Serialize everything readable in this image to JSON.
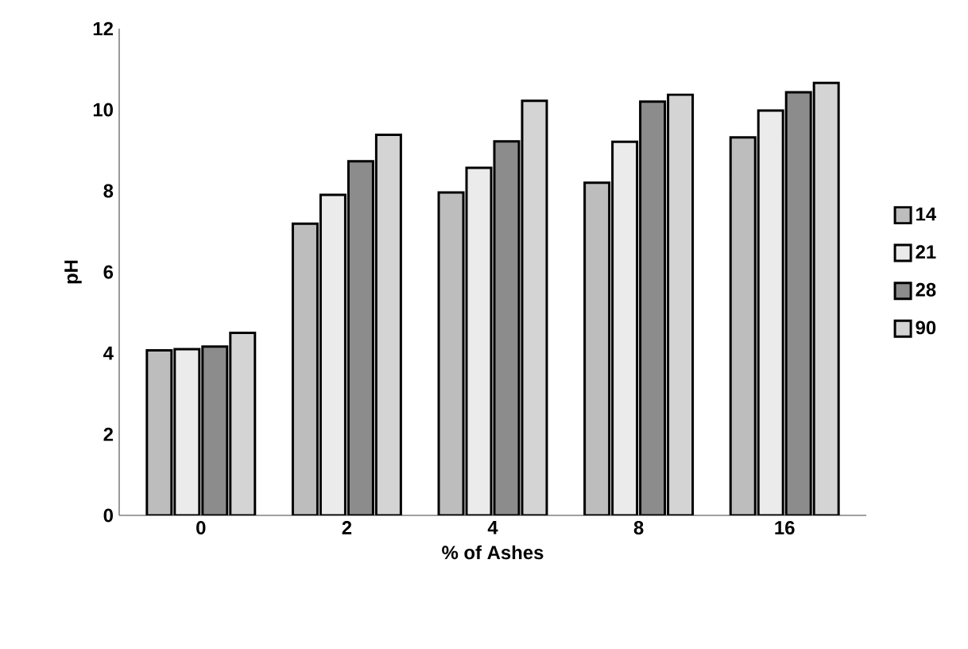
{
  "chart_data": {
    "type": "bar",
    "xlabel": "% of Ashes",
    "ylabel": "pH",
    "categories": [
      "0",
      "2",
      "4",
      "8",
      "16"
    ],
    "series": [
      {
        "name": "14",
        "color": "#bdbdbd",
        "values": [
          4.07,
          7.19,
          7.96,
          8.2,
          9.32
        ]
      },
      {
        "name": "21",
        "color": "#ebebeb",
        "values": [
          4.1,
          7.9,
          8.57,
          9.21,
          9.98
        ]
      },
      {
        "name": "28",
        "color": "#8c8c8c",
        "values": [
          4.16,
          8.73,
          9.22,
          10.2,
          10.43
        ]
      },
      {
        "name": "90",
        "color": "#d4d4d4",
        "values": [
          4.5,
          9.38,
          10.22,
          10.37,
          10.66
        ]
      }
    ],
    "ylim": [
      0,
      12
    ],
    "yticks": [
      0,
      2,
      4,
      6,
      8,
      10,
      12
    ],
    "grid": false,
    "legend": "right"
  }
}
